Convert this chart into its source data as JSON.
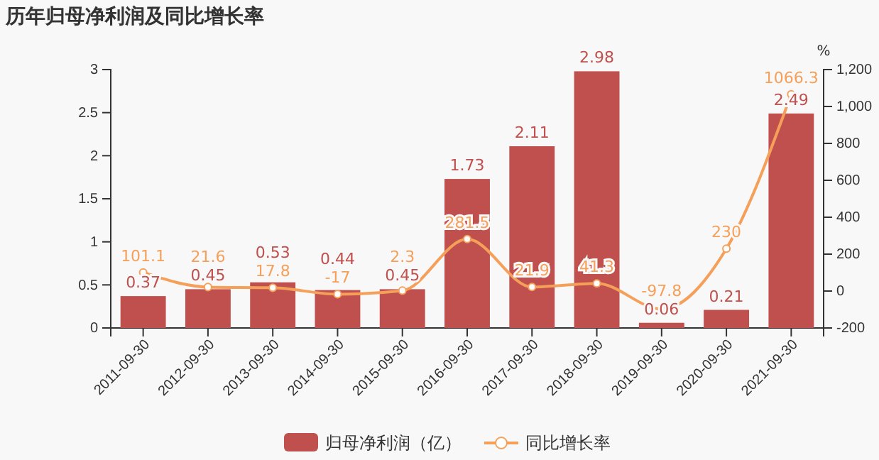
{
  "chart_data": {
    "type": "bar",
    "title": "历年归母净利润及同比增长率",
    "y2label": "%",
    "categories": [
      "2011-09-30",
      "2012-09-30",
      "2013-09-30",
      "2014-09-30",
      "2015-09-30",
      "2016-09-30",
      "2017-09-30",
      "2018-09-30",
      "2019-09-30",
      "2020-09-30",
      "2021-09-30"
    ],
    "series": [
      {
        "name": "归母净利润（亿）",
        "color": "#c0504d",
        "values": [
          0.37,
          0.45,
          0.53,
          0.44,
          0.45,
          1.73,
          2.11,
          2.98,
          0.06,
          0.21,
          2.49
        ]
      },
      {
        "name": "同比增长率",
        "type": "line",
        "axis": "y2",
        "color": "#f5a05a",
        "marker": "circle",
        "values": [
          101.1,
          21.6,
          17.8,
          -17,
          2.3,
          281.5,
          21.9,
          41.3,
          -97.8,
          230,
          1066.3
        ]
      }
    ],
    "ylim": [
      0,
      3
    ],
    "yticks": [
      0,
      0.5,
      1,
      1.5,
      2,
      2.5,
      3
    ],
    "y2lim": [
      -200,
      1200
    ],
    "y2ticks": [
      -200,
      0,
      200,
      400,
      600,
      800,
      {
        "value": 1000,
        "label": "1,000"
      },
      {
        "value": 1200,
        "label": "1,200"
      }
    ],
    "data_labels": true,
    "legend": "bottom",
    "grid": false
  }
}
